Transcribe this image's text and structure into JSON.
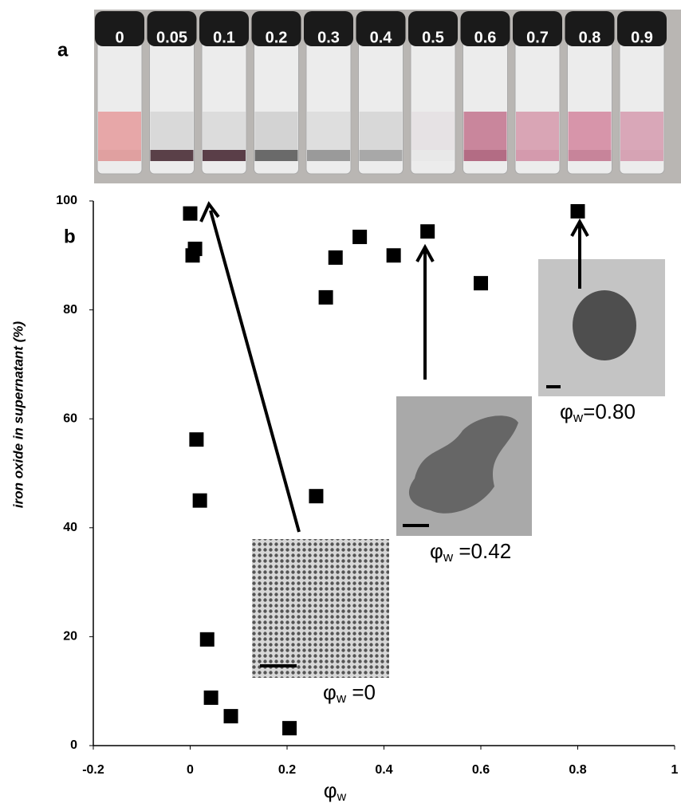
{
  "panel_labels": [
    "a",
    "b"
  ],
  "vials": [
    "0",
    "0.05",
    "0.1",
    "0.2",
    "0.3",
    "0.4",
    "0.5",
    "0.6",
    "0.7",
    "0.8",
    "0.9"
  ],
  "chart_data": {
    "type": "scatter",
    "xlabel": {
      "main": "φ",
      "sub": "w"
    },
    "ylabel": "iron oxide in supernatant  (%)",
    "x": [
      0,
      0.01,
      0.005,
      0.013,
      0.02,
      0.035,
      0.043,
      0.084,
      0.205,
      0.26,
      0.28,
      0.3,
      0.35,
      0.42,
      0.49,
      0.6,
      0.8
    ],
    "values": [
      97.7,
      91.2,
      90.0,
      56.2,
      45,
      19.5,
      8.8,
      5.4,
      3.2,
      45.8,
      82.3,
      89.6,
      93.4,
      90,
      94.4,
      84.9,
      98.1
    ],
    "color": "#000000",
    "xlim": [
      -0.2,
      1
    ],
    "xticks": [
      -0.2,
      0,
      0.2,
      0.4,
      0.6,
      0.8,
      1
    ],
    "ylim": [
      0,
      100
    ],
    "yticks": [
      0,
      20,
      40,
      60,
      80,
      100
    ],
    "annotations": [
      {
        "symbol": "φ",
        "sub": "w",
        "text": " =0"
      },
      {
        "symbol": "φ",
        "sub": "w",
        "text": " =0.42"
      },
      {
        "symbol": "φ",
        "sub": "w",
        "text": "=0.80"
      }
    ]
  }
}
